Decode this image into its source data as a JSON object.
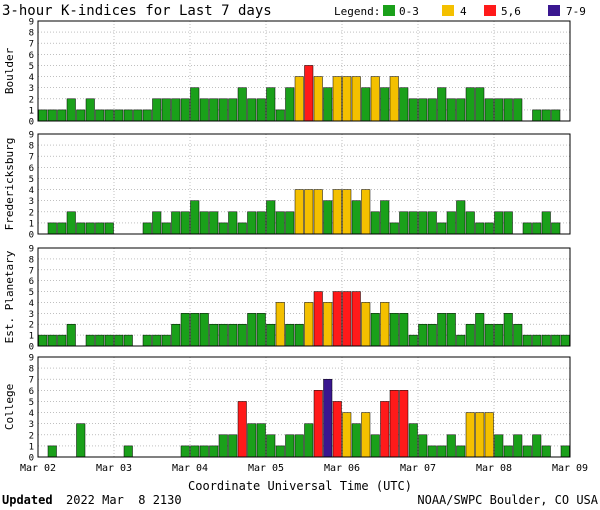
{
  "page": {
    "title": "3-hour K-indices for Last 7 days",
    "updated_label": "Updated",
    "updated_value": "2022 Mar  8 2130",
    "credit": "NOAA/SWPC Boulder, CO USA",
    "xlabel": "Coordinate Universal Time (UTC)"
  },
  "legend": {
    "label": "Legend:",
    "items": [
      {
        "label": "0-3",
        "color": "#1aa01a"
      },
      {
        "label": "4",
        "color": "#f4c000"
      },
      {
        "label": "5,6",
        "color": "#ff1a1a"
      },
      {
        "label": "7-9",
        "color": "#3a1790"
      }
    ]
  },
  "chart_data": [
    {
      "type": "bar",
      "title": "Boulder",
      "ylim": [
        0,
        9
      ],
      "x_ticks": [
        "Mar 02",
        "Mar 03",
        "Mar 04",
        "Mar 05",
        "Mar 06",
        "Mar 07",
        "Mar 08",
        "Mar 09"
      ],
      "values": [
        1,
        1,
        1,
        2,
        1,
        2,
        1,
        1,
        1,
        1,
        1,
        1,
        2,
        2,
        2,
        2,
        3,
        2,
        2,
        2,
        2,
        3,
        2,
        2,
        3,
        1,
        3,
        4,
        5,
        4,
        3,
        4,
        4,
        4,
        3,
        4,
        3,
        4,
        3,
        2,
        2,
        2,
        3,
        2,
        2,
        3,
        3,
        2,
        2,
        2,
        2,
        0,
        1,
        1,
        1,
        0
      ]
    },
    {
      "type": "bar",
      "title": "Fredericksburg",
      "ylim": [
        0,
        9
      ],
      "x_ticks": [
        "Mar 02",
        "Mar 03",
        "Mar 04",
        "Mar 05",
        "Mar 06",
        "Mar 07",
        "Mar 08",
        "Mar 09"
      ],
      "values": [
        0,
        1,
        1,
        2,
        1,
        1,
        1,
        1,
        0,
        0,
        0,
        1,
        2,
        1,
        2,
        2,
        3,
        2,
        2,
        1,
        2,
        1,
        2,
        2,
        3,
        2,
        2,
        4,
        4,
        4,
        3,
        4,
        4,
        3,
        4,
        2,
        3,
        1,
        2,
        2,
        2,
        2,
        1,
        2,
        3,
        2,
        1,
        1,
        2,
        2,
        0,
        1,
        1,
        2,
        1,
        0
      ]
    },
    {
      "type": "bar",
      "title": "Est. Planetary",
      "ylim": [
        0,
        9
      ],
      "x_ticks": [
        "Mar 02",
        "Mar 03",
        "Mar 04",
        "Mar 05",
        "Mar 06",
        "Mar 07",
        "Mar 08",
        "Mar 09"
      ],
      "values": [
        1,
        1,
        1,
        2,
        0,
        1,
        1,
        1,
        1,
        1,
        0,
        1,
        1,
        1,
        2,
        3,
        3,
        3,
        2,
        2,
        2,
        2,
        3,
        3,
        2,
        4,
        2,
        2,
        4,
        5,
        4,
        5,
        5,
        5,
        4,
        3,
        4,
        3,
        3,
        1,
        2,
        2,
        3,
        3,
        1,
        2,
        3,
        2,
        2,
        3,
        2,
        1,
        1,
        1,
        1,
        1
      ]
    },
    {
      "type": "bar",
      "title": "College",
      "ylim": [
        0,
        9
      ],
      "x_ticks": [
        "Mar 02",
        "Mar 03",
        "Mar 04",
        "Mar 05",
        "Mar 06",
        "Mar 07",
        "Mar 08",
        "Mar 09"
      ],
      "values": [
        0,
        1,
        0,
        0,
        3,
        0,
        0,
        0,
        0,
        1,
        0,
        0,
        0,
        0,
        0,
        1,
        1,
        1,
        1,
        2,
        2,
        5,
        3,
        3,
        2,
        1,
        2,
        2,
        3,
        6,
        7,
        5,
        4,
        3,
        4,
        2,
        5,
        6,
        6,
        3,
        2,
        1,
        1,
        2,
        1,
        4,
        4,
        4,
        2,
        1,
        2,
        1,
        2,
        1,
        0,
        1
      ]
    }
  ]
}
